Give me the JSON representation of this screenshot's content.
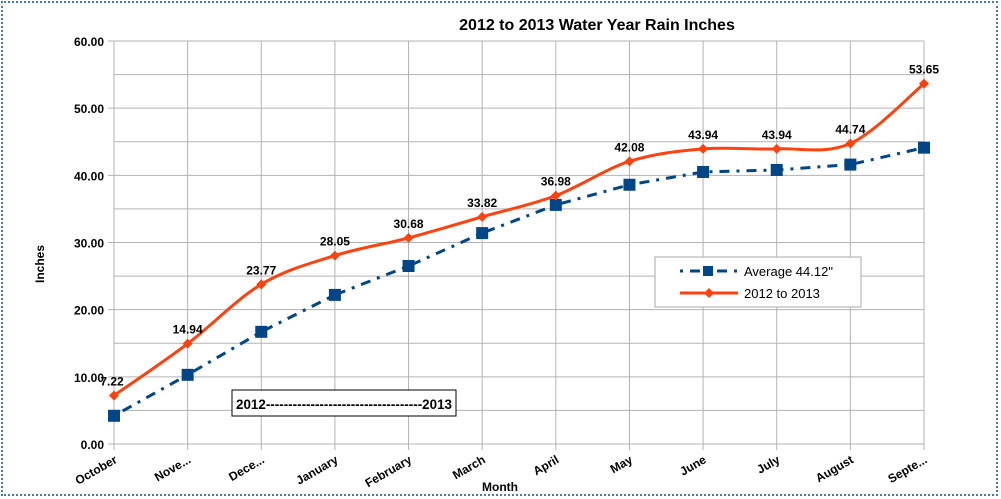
{
  "chart_data": {
    "type": "line",
    "title": "2012 to 2013 Water Year Rain Inches",
    "xlabel": "Month",
    "ylabel": "Inches",
    "ylim": [
      0,
      60
    ],
    "ytick_step": 10,
    "minor_grid_step": 5,
    "grid": true,
    "legend_placement": "center-right",
    "categories": [
      "October",
      "Nove...",
      "Dece...",
      "January",
      "February",
      "March",
      "April",
      "May",
      "June",
      "July",
      "August",
      "Septe..."
    ],
    "yticks": [
      "0.00",
      "10.00",
      "20.00",
      "30.00",
      "40.00",
      "50.00",
      "60.00"
    ],
    "series": [
      {
        "name": "Average 44.12\"",
        "color": "#004586",
        "style": "dash-dot",
        "marker": "square",
        "smooth": false,
        "values": [
          4.2,
          10.3,
          16.7,
          22.2,
          26.5,
          31.4,
          35.6,
          38.6,
          40.5,
          40.8,
          41.6,
          44.12
        ],
        "labels_shown": false
      },
      {
        "name": "2012 to 2013",
        "color": "#ff420e",
        "style": "solid",
        "marker": "diamond",
        "smooth": true,
        "values": [
          7.22,
          14.94,
          23.77,
          28.05,
          30.68,
          33.82,
          36.98,
          42.08,
          43.94,
          43.94,
          44.74,
          53.65
        ],
        "data_labels": [
          "7.22",
          "14.94",
          "23.77",
          "28.05",
          "30.68",
          "33.82",
          "36.98",
          "42.08",
          "43.94",
          "43.94",
          "44.74",
          "53.65"
        ]
      }
    ],
    "annotation": "2012-----------------------------------2013"
  }
}
